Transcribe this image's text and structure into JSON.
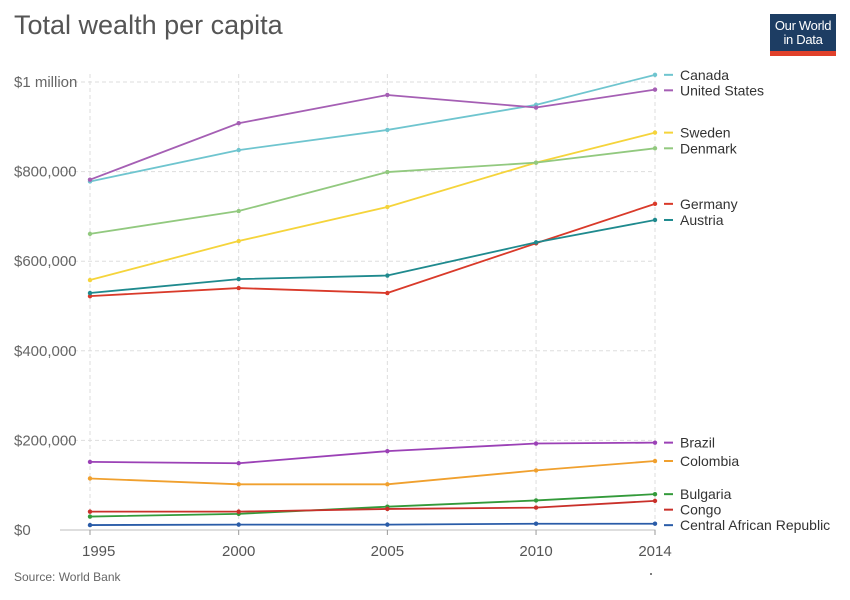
{
  "header": {
    "title": "Total wealth per capita",
    "logo_line1": "Our World",
    "logo_line2": "in Data"
  },
  "footer": {
    "source": "Source: World Bank"
  },
  "chart_data": {
    "type": "line",
    "title": "Total wealth per capita",
    "xlabel": "",
    "ylabel": "",
    "x": [
      1995,
      2000,
      2005,
      2010,
      2014
    ],
    "x_ticks": [
      "1995",
      "2000",
      "2005",
      "2010",
      "2014"
    ],
    "ylim": [
      0,
      1000000
    ],
    "y_ticks": [
      {
        "value": 0,
        "label": "$0"
      },
      {
        "value": 200000,
        "label": "$200,000"
      },
      {
        "value": 400000,
        "label": "$400,000"
      },
      {
        "value": 600000,
        "label": "$600,000"
      },
      {
        "value": 800000,
        "label": "$800,000"
      },
      {
        "value": 1000000,
        "label": "$1 million"
      }
    ],
    "grid": true,
    "legend_position": "right",
    "series": [
      {
        "name": "Canada",
        "color": "#6fc5cf",
        "values": [
          778000,
          848000,
          893000,
          949000,
          1016000
        ]
      },
      {
        "name": "United States",
        "color": "#a55fb4",
        "values": [
          782000,
          908000,
          971000,
          943000,
          983000
        ]
      },
      {
        "name": "Sweden",
        "color": "#f5d43b",
        "values": [
          558000,
          645000,
          721000,
          820000,
          887000
        ]
      },
      {
        "name": "Denmark",
        "color": "#92c97f",
        "values": [
          661000,
          712000,
          799000,
          820000,
          852000
        ]
      },
      {
        "name": "Germany",
        "color": "#d93a2a",
        "values": [
          522000,
          540000,
          529000,
          640000,
          728000
        ]
      },
      {
        "name": "Austria",
        "color": "#1f8a8e",
        "values": [
          529000,
          560000,
          568000,
          642000,
          692000
        ]
      },
      {
        "name": "Brazil",
        "color": "#9b41b6",
        "values": [
          152000,
          149000,
          176000,
          193000,
          195000
        ]
      },
      {
        "name": "Colombia",
        "color": "#f0a02e",
        "values": [
          115000,
          102000,
          102000,
          133000,
          154000
        ]
      },
      {
        "name": "Bulgaria",
        "color": "#339a3a",
        "values": [
          30000,
          36000,
          52000,
          66000,
          80000
        ]
      },
      {
        "name": "Congo",
        "color": "#c9302a",
        "values": [
          41000,
          41000,
          47000,
          50000,
          65000
        ]
      },
      {
        "name": "Central African Republic",
        "color": "#2a5ca8",
        "values": [
          11000,
          12000,
          12000,
          14000,
          14000
        ]
      }
    ]
  }
}
